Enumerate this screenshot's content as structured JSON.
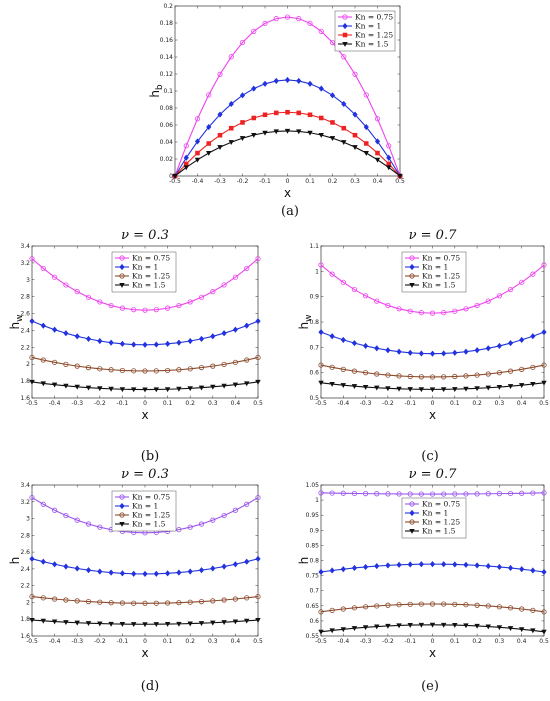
{
  "chart_data": [
    {
      "id": "a",
      "type": "line",
      "caption": "(a)",
      "title": "",
      "xlabel": "x",
      "ylabel": "h",
      "ylabel_sub": "b",
      "xlim": [
        -0.5,
        0.5
      ],
      "ylim": [
        0,
        0.2
      ],
      "xticks": [
        "-0.5",
        "-0.4",
        "-0.3",
        "-0.2",
        "-0.1",
        "0",
        "0.1",
        "0.2",
        "0.3",
        "0.4",
        "0.5"
      ],
      "yticks": [
        "0",
        "0.02",
        "0.04",
        "0.06",
        "0.08",
        "0.1",
        "0.12",
        "0.14",
        "0.16",
        "0.18",
        "0.2"
      ],
      "legend_position": "top-right",
      "series": [
        {
          "name": "Kn = 0.75",
          "color": "#ee44ee",
          "marker": "circle",
          "shape": "parabola",
          "edge": 0.0,
          "center": 0.187
        },
        {
          "name": "Kn = 1",
          "color": "#2233dd",
          "marker": "diamond",
          "shape": "parabola",
          "edge": 0.0,
          "center": 0.113
        },
        {
          "name": "Kn = 1.25",
          "color": "#ee2222",
          "marker": "square",
          "shape": "parabola",
          "edge": 0.0,
          "center": 0.075
        },
        {
          "name": "Kn = 1.5",
          "color": "#111111",
          "marker": "triangle-down",
          "shape": "parabola",
          "edge": 0.0,
          "center": 0.053
        }
      ]
    },
    {
      "id": "b",
      "type": "line",
      "caption": "(b)",
      "title": "ν = 0.3",
      "xlabel": "x",
      "ylabel": "h",
      "ylabel_sub": "w",
      "xlim": [
        -0.5,
        0.5
      ],
      "ylim": [
        1.6,
        3.4
      ],
      "xticks": [
        "-0.5",
        "-0.4",
        "-0.3",
        "-0.2",
        "-0.1",
        "0",
        "0.1",
        "0.2",
        "0.3",
        "0.4",
        "0.5"
      ],
      "yticks": [
        "1.6",
        "1.8",
        "2",
        "2.2",
        "2.4",
        "2.6",
        "2.8",
        "3",
        "3.2",
        "3.4"
      ],
      "legend_position": "top-center",
      "series": [
        {
          "name": "Kn = 0.75",
          "color": "#ee44ee",
          "marker": "circle",
          "shape": "parabola",
          "edge": 3.25,
          "center": 2.64
        },
        {
          "name": "Kn = 1",
          "color": "#2233dd",
          "marker": "diamond",
          "shape": "parabola",
          "edge": 2.51,
          "center": 2.23
        },
        {
          "name": "Kn = 1.25",
          "color": "#8b4a2b",
          "marker": "circle",
          "shape": "parabola",
          "edge": 2.08,
          "center": 1.92
        },
        {
          "name": "Kn = 1.5",
          "color": "#111111",
          "marker": "triangle-down",
          "shape": "parabola",
          "edge": 1.79,
          "center": 1.7
        }
      ]
    },
    {
      "id": "c",
      "type": "line",
      "caption": "(c)",
      "title": "ν = 0.7",
      "xlabel": "x",
      "ylabel": "h",
      "ylabel_sub": "w",
      "xlim": [
        -0.5,
        0.5
      ],
      "ylim": [
        0.5,
        1.1
      ],
      "xticks": [
        "-0.5",
        "-0.4",
        "-0.3",
        "-0.2",
        "-0.1",
        "0",
        "0.1",
        "0.2",
        "0.3",
        "0.4",
        "0.5"
      ],
      "yticks": [
        "0.5",
        "0.6",
        "0.7",
        "0.8",
        "0.9",
        "1",
        "1.1"
      ],
      "legend_position": "top-center",
      "series": [
        {
          "name": "Kn = 0.75",
          "color": "#ee44ee",
          "marker": "circle",
          "shape": "parabola",
          "edge": 1.025,
          "center": 0.835
        },
        {
          "name": "Kn = 1",
          "color": "#2233dd",
          "marker": "diamond",
          "shape": "parabola",
          "edge": 0.76,
          "center": 0.675
        },
        {
          "name": "Kn = 1.25",
          "color": "#8b4a2b",
          "marker": "circle",
          "shape": "parabola",
          "edge": 0.63,
          "center": 0.583
        },
        {
          "name": "Kn = 1.5",
          "color": "#111111",
          "marker": "triangle-down",
          "shape": "parabola",
          "edge": 0.56,
          "center": 0.534
        }
      ]
    },
    {
      "id": "d",
      "type": "line",
      "caption": "(d)",
      "title": "ν = 0.3",
      "xlabel": "x",
      "ylabel": "h",
      "ylabel_sub": "",
      "xlim": [
        -0.5,
        0.5
      ],
      "ylim": [
        1.6,
        3.4
      ],
      "xticks": [
        "-0.5",
        "-0.4",
        "-0.3",
        "-0.2",
        "-0.1",
        "0",
        "0.1",
        "0.2",
        "0.3",
        "0.4",
        "0.5"
      ],
      "yticks": [
        "1.6",
        "1.8",
        "2",
        "2.2",
        "2.4",
        "2.6",
        "2.8",
        "3",
        "3.2",
        "3.4"
      ],
      "legend_position": "top-center",
      "series": [
        {
          "name": "Kn = 0.75",
          "color": "#9955ee",
          "marker": "circle",
          "shape": "parabola",
          "edge": 3.25,
          "center": 2.83
        },
        {
          "name": "Kn = 1",
          "color": "#2233dd",
          "marker": "diamond",
          "shape": "parabola",
          "edge": 2.52,
          "center": 2.34
        },
        {
          "name": "Kn = 1.25",
          "color": "#8b4a2b",
          "marker": "circle",
          "shape": "parabola",
          "edge": 2.07,
          "center": 1.99
        },
        {
          "name": "Kn = 1.5",
          "color": "#111111",
          "marker": "triangle-down",
          "shape": "parabola",
          "edge": 1.79,
          "center": 1.74
        }
      ]
    },
    {
      "id": "e",
      "type": "line",
      "caption": "(e)",
      "title": "ν = 0.7",
      "xlabel": "x",
      "ylabel": "h",
      "ylabel_sub": "",
      "xlim": [
        -0.5,
        0.5
      ],
      "ylim": [
        0.55,
        1.05
      ],
      "xticks": [
        "-0.5",
        "-0.4",
        "-0.3",
        "-0.2",
        "-0.1",
        "0",
        "0.1",
        "0.2",
        "0.3",
        "0.4",
        "0.5"
      ],
      "yticks": [
        "0.55",
        "0.6",
        "0.65",
        "0.7",
        "0.75",
        "0.8",
        "0.85",
        "0.9",
        "0.95",
        "1",
        "1.05"
      ],
      "legend_position": "top-center",
      "series": [
        {
          "name": "Kn = 0.75",
          "color": "#9955ee",
          "marker": "circle",
          "shape": "parabola",
          "edge": 1.024,
          "center": 1.02
        },
        {
          "name": "Kn = 1",
          "color": "#2233dd",
          "marker": "diamond",
          "shape": "parabola",
          "edge": 0.762,
          "center": 0.788
        },
        {
          "name": "Kn = 1.25",
          "color": "#8b4a2b",
          "marker": "circle",
          "shape": "parabola",
          "edge": 0.63,
          "center": 0.656
        },
        {
          "name": "Kn = 1.5",
          "color": "#111111",
          "marker": "triangle-down",
          "shape": "parabola",
          "edge": 0.564,
          "center": 0.587
        }
      ]
    }
  ]
}
